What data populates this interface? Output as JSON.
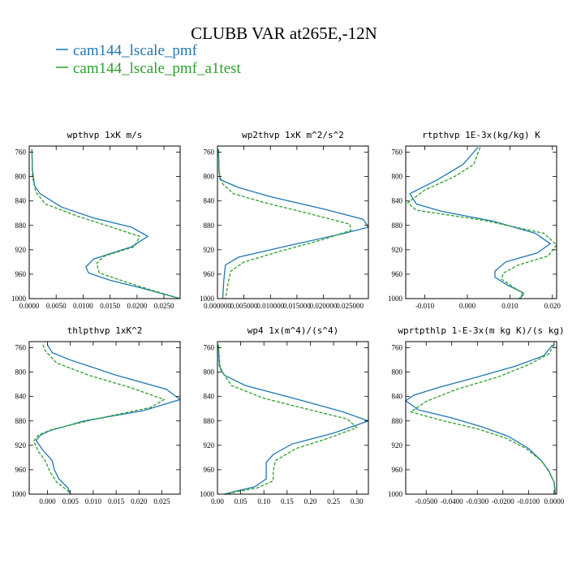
{
  "figure": {
    "title": "CLUBB VAR at265E,-12N",
    "legend": [
      {
        "label": "cam144_lscale_pmf",
        "color": "#1f77b4"
      },
      {
        "label": "cam144_lscale_pmf_a1test",
        "color": "#2ca02c"
      }
    ]
  },
  "chart_data": [
    {
      "type": "line",
      "title": "wpthvp   1xK m/s",
      "xlim": [
        0,
        0.028
      ],
      "ylim": [
        1000,
        750
      ],
      "xticks": [
        "0.0000",
        "0.0050",
        "0.0100",
        "0.0150",
        "0.0200",
        "0.0250"
      ],
      "xtick_values": [
        0,
        0.005,
        0.01,
        0.015,
        0.02,
        0.025
      ],
      "yticks": [
        "760",
        "800",
        "840",
        "880",
        "920",
        "960",
        "1000"
      ],
      "ytick_values": [
        760,
        800,
        840,
        880,
        920,
        960,
        1000
      ],
      "series": [
        {
          "name": "cam144_lscale_pmf",
          "color": "#1f77b4",
          "dash": "",
          "points": [
            [
              0.0005,
              755
            ],
            [
              0.0006,
              790
            ],
            [
              0.001,
              815
            ],
            [
              0.002,
              828
            ],
            [
              0.006,
              850
            ],
            [
              0.012,
              868
            ],
            [
              0.019,
              883
            ],
            [
              0.022,
              898
            ],
            [
              0.019,
              915
            ],
            [
              0.012,
              935
            ],
            [
              0.0105,
              948
            ],
            [
              0.011,
              958
            ],
            [
              0.015,
              970
            ],
            [
              0.021,
              983
            ],
            [
              0.028,
              1000
            ]
          ]
        },
        {
          "name": "cam144_lscale_pmf_a1test",
          "color": "#2ca02c",
          "dash": "4,2",
          "points": [
            [
              0.0005,
              755
            ],
            [
              0.0006,
              800
            ],
            [
              0.0012,
              825
            ],
            [
              0.003,
              845
            ],
            [
              0.009,
              865
            ],
            [
              0.016,
              885
            ],
            [
              0.0205,
              898
            ],
            [
              0.0195,
              915
            ],
            [
              0.014,
              930
            ],
            [
              0.0125,
              942
            ],
            [
              0.013,
              958
            ],
            [
              0.018,
              973
            ],
            [
              0.023,
              987
            ],
            [
              0.028,
              1000
            ]
          ]
        }
      ]
    },
    {
      "type": "line",
      "title": "wp2thvp  1xK m^2/s^2",
      "xlim": [
        0,
        0.0285
      ],
      "ylim": [
        1000,
        750
      ],
      "xticks": [
        "0.000000",
        "0.005000",
        "0.010000",
        "0.015000",
        "0.020000",
        "0.025000"
      ],
      "xtick_values": [
        0,
        0.005,
        0.01,
        0.015,
        0.02,
        0.025
      ],
      "yticks": [
        "760",
        "800",
        "840",
        "880",
        "920",
        "960",
        "1000"
      ],
      "ytick_values": [
        760,
        800,
        840,
        880,
        920,
        960,
        1000
      ],
      "series": [
        {
          "name": "cam144_lscale_pmf",
          "color": "#1f77b4",
          "dash": "",
          "points": [
            [
              0.0002,
              755
            ],
            [
              0.0003,
              790
            ],
            [
              0.0005,
              805
            ],
            [
              0.004,
              818
            ],
            [
              0.01,
              833
            ],
            [
              0.02,
              853
            ],
            [
              0.0275,
              870
            ],
            [
              0.0285,
              883
            ],
            [
              0.024,
              893
            ],
            [
              0.0135,
              913
            ],
            [
              0.004,
              932
            ],
            [
              0.0015,
              945
            ],
            [
              0.0012,
              970
            ],
            [
              0.001,
              1000
            ]
          ]
        },
        {
          "name": "cam144_lscale_pmf_a1test",
          "color": "#2ca02c",
          "dash": "4,2",
          "points": [
            [
              0.0002,
              755
            ],
            [
              0.0003,
              795
            ],
            [
              0.001,
              812
            ],
            [
              0.003,
              828
            ],
            [
              0.009,
              843
            ],
            [
              0.017,
              860
            ],
            [
              0.025,
              878
            ],
            [
              0.0252,
              888
            ],
            [
              0.02,
              903
            ],
            [
              0.012,
              922
            ],
            [
              0.005,
              940
            ],
            [
              0.0025,
              955
            ],
            [
              0.002,
              975
            ],
            [
              0.0015,
              1000
            ]
          ]
        }
      ]
    },
    {
      "type": "line",
      "title": "rtpthvp  1E-3x(kg/kg) K",
      "xlim": [
        -0.0145,
        0.021
      ],
      "ylim": [
        1000,
        750
      ],
      "xticks": [
        "-0.010",
        "0.000",
        "0.010",
        "0.020"
      ],
      "xtick_values": [
        -0.01,
        0,
        0.01,
        0.02
      ],
      "yticks": [
        "760",
        "800",
        "840",
        "880",
        "920",
        "960",
        "1000"
      ],
      "ytick_values": [
        760,
        800,
        840,
        880,
        920,
        960,
        1000
      ],
      "series": [
        {
          "name": "cam144_lscale_pmf",
          "color": "#1f77b4",
          "dash": "",
          "points": [
            [
              0.0025,
              752
            ],
            [
              -0.001,
              780
            ],
            [
              -0.007,
              805
            ],
            [
              -0.0135,
              828
            ],
            [
              -0.012,
              845
            ],
            [
              -0.006,
              857
            ],
            [
              0.006,
              873
            ],
            [
              0.016,
              893
            ],
            [
              0.0195,
              910
            ],
            [
              0.0165,
              925
            ],
            [
              0.009,
              940
            ],
            [
              0.0065,
              955
            ],
            [
              0.0065,
              965
            ],
            [
              0.0095,
              978
            ],
            [
              0.013,
              990
            ],
            [
              0.0125,
              1000
            ]
          ]
        },
        {
          "name": "cam144_lscale_pmf_a1test",
          "color": "#2ca02c",
          "dash": "4,2",
          "points": [
            [
              0.003,
              752
            ],
            [
              0.0015,
              780
            ],
            [
              -0.003,
              800
            ],
            [
              -0.01,
              822
            ],
            [
              -0.014,
              843
            ],
            [
              -0.012,
              855
            ],
            [
              0.004,
              872
            ],
            [
              0.018,
              893
            ],
            [
              0.021,
              912
            ],
            [
              0.019,
              930
            ],
            [
              0.012,
              945
            ],
            [
              0.0085,
              958
            ],
            [
              0.008,
              968
            ],
            [
              0.011,
              982
            ],
            [
              0.0135,
              993
            ],
            [
              0.012,
              1000
            ]
          ]
        }
      ]
    },
    {
      "type": "line",
      "title": "thlpthvp  1xK^2",
      "xlim": [
        -0.004,
        0.029
      ],
      "ylim": [
        1000,
        750
      ],
      "xticks": [
        "0.000",
        "0.005",
        "0.010",
        "0.015",
        "0.020",
        "0.025"
      ],
      "xtick_values": [
        0,
        0.005,
        0.01,
        0.015,
        0.02,
        0.025
      ],
      "yticks": [
        "760",
        "800",
        "840",
        "880",
        "920",
        "960",
        "1000"
      ],
      "ytick_values": [
        760,
        800,
        840,
        880,
        920,
        960,
        1000
      ],
      "series": [
        {
          "name": "cam144_lscale_pmf",
          "color": "#1f77b4",
          "dash": "",
          "points": [
            [
              0,
              755
            ],
            [
              0.001,
              768
            ],
            [
              0.005,
              780
            ],
            [
              0.015,
              805
            ],
            [
              0.026,
              828
            ],
            [
              0.029,
              845
            ],
            [
              0.021,
              863
            ],
            [
              0.008,
              880
            ],
            [
              0.0005,
              896
            ],
            [
              -0.0015,
              903
            ],
            [
              -0.0025,
              912
            ],
            [
              -0.001,
              928
            ],
            [
              0.001,
              945
            ],
            [
              0.0015,
              960
            ],
            [
              0.0025,
              975
            ],
            [
              0.0045,
              990
            ],
            [
              0.005,
              1000
            ]
          ]
        },
        {
          "name": "cam144_lscale_pmf_a1test",
          "color": "#2ca02c",
          "dash": "4,2",
          "points": [
            [
              -0.001,
              755
            ],
            [
              -0.0005,
              765
            ],
            [
              0.002,
              785
            ],
            [
              0.009,
              805
            ],
            [
              0.018,
              825
            ],
            [
              0.0255,
              845
            ],
            [
              0.0225,
              858
            ],
            [
              0.011,
              876
            ],
            [
              0.001,
              894
            ],
            [
              -0.002,
              903
            ],
            [
              -0.003,
              913
            ],
            [
              -0.002,
              930
            ],
            [
              -0.0005,
              945
            ],
            [
              0.0005,
              963
            ],
            [
              0.002,
              980
            ],
            [
              0.0045,
              995
            ],
            [
              0.005,
              1000
            ]
          ]
        }
      ]
    },
    {
      "type": "line",
      "title": "wp4  1x(m^4)/(s^4)",
      "xlim": [
        0,
        0.325
      ],
      "ylim": [
        1000,
        750
      ],
      "xticks": [
        "0.00",
        "0.05",
        "0.10",
        "0.15",
        "0.20",
        "0.25",
        "0.30"
      ],
      "xtick_values": [
        0,
        0.05,
        0.1,
        0.15,
        0.2,
        0.25,
        0.3
      ],
      "yticks": [
        "760",
        "800",
        "840",
        "880",
        "920",
        "960",
        "1000"
      ],
      "ytick_values": [
        760,
        800,
        840,
        880,
        920,
        960,
        1000
      ],
      "series": [
        {
          "name": "cam144_lscale_pmf",
          "color": "#1f77b4",
          "dash": "",
          "points": [
            [
              0.002,
              755
            ],
            [
              0.004,
              790
            ],
            [
              0.015,
              805
            ],
            [
              0.06,
              822
            ],
            [
              0.16,
              842
            ],
            [
              0.27,
              865
            ],
            [
              0.325,
              880
            ],
            [
              0.25,
              900
            ],
            [
              0.16,
              918
            ],
            [
              0.12,
              935
            ],
            [
              0.105,
              948
            ],
            [
              0.105,
              960
            ],
            [
              0.105,
              975
            ],
            [
              0.08,
              988
            ],
            [
              0.04,
              995
            ],
            [
              0.015,
              1000
            ]
          ]
        },
        {
          "name": "cam144_lscale_pmf_a1test",
          "color": "#2ca02c",
          "dash": "4,2",
          "points": [
            [
              0.002,
              755
            ],
            [
              0.006,
              795
            ],
            [
              0.03,
              822
            ],
            [
              0.1,
              843
            ],
            [
              0.2,
              862
            ],
            [
              0.28,
              877
            ],
            [
              0.3,
              891
            ],
            [
              0.24,
              908
            ],
            [
              0.17,
              925
            ],
            [
              0.125,
              945
            ],
            [
              0.12,
              962
            ],
            [
              0.12,
              978
            ],
            [
              0.085,
              990
            ],
            [
              0.04,
              996
            ],
            [
              0.02,
              1000
            ]
          ]
        }
      ]
    },
    {
      "type": "line",
      "title": "wprtpthlp  1-E-3x(m kg K)/(s kg)",
      "xlim": [
        -0.058,
        0.001
      ],
      "ylim": [
        1000,
        750
      ],
      "xticks": [
        "-0.0500",
        "-0.0400",
        "-0.0300",
        "-0.0200",
        "-0.0100",
        "0.0000"
      ],
      "xtick_values": [
        -0.05,
        -0.04,
        -0.03,
        -0.02,
        -0.01,
        0
      ],
      "yticks": [
        "760",
        "800",
        "840",
        "880",
        "920",
        "960",
        "1000"
      ],
      "ytick_values": [
        760,
        800,
        840,
        880,
        920,
        960,
        1000
      ],
      "series": [
        {
          "name": "cam144_lscale_pmf",
          "color": "#1f77b4",
          "dash": "",
          "points": [
            [
              -0.0005,
              755
            ],
            [
              -0.004,
              773
            ],
            [
              -0.015,
              790
            ],
            [
              -0.03,
              808
            ],
            [
              -0.045,
              825
            ],
            [
              -0.055,
              838
            ],
            [
              -0.058,
              847
            ],
            [
              -0.053,
              862
            ],
            [
              -0.04,
              875
            ],
            [
              -0.028,
              890
            ],
            [
              -0.018,
              905
            ],
            [
              -0.01,
              925
            ],
            [
              -0.005,
              945
            ],
            [
              -0.002,
              962
            ],
            [
              0,
              980
            ],
            [
              0.0005,
              1000
            ]
          ]
        },
        {
          "name": "cam144_lscale_pmf_a1test",
          "color": "#2ca02c",
          "dash": "4,2",
          "points": [
            [
              0,
              755
            ],
            [
              -0.002,
              770
            ],
            [
              -0.01,
              788
            ],
            [
              -0.022,
              808
            ],
            [
              -0.038,
              828
            ],
            [
              -0.05,
              848
            ],
            [
              -0.056,
              865
            ],
            [
              -0.045,
              878
            ],
            [
              -0.03,
              893
            ],
            [
              -0.019,
              908
            ],
            [
              -0.011,
              925
            ],
            [
              -0.005,
              945
            ],
            [
              -0.002,
              963
            ],
            [
              0,
              980
            ],
            [
              0.0005,
              1000
            ]
          ]
        }
      ]
    }
  ]
}
